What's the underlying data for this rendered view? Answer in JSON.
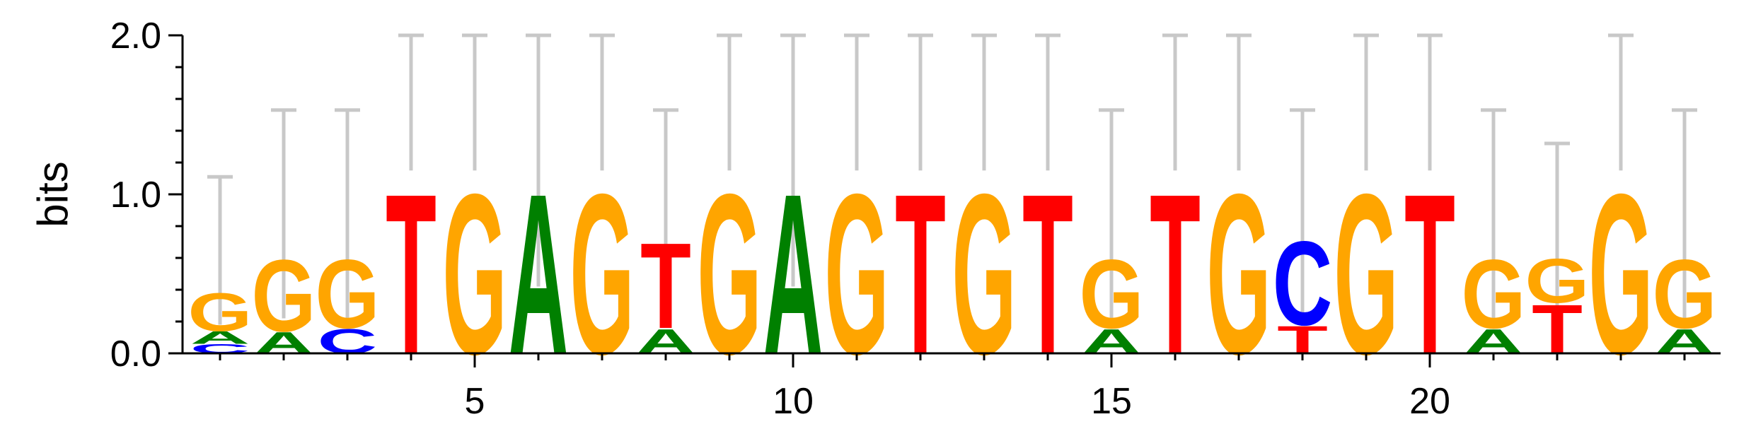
{
  "chart_data": {
    "type": "sequence-logo",
    "title": "",
    "xlabel": "",
    "ylabel": "bits",
    "ylim": [
      0,
      2
    ],
    "yticks": [
      "0.0",
      "1.0",
      "2.0"
    ],
    "xticks": [
      5,
      10,
      15,
      20
    ],
    "colors": {
      "A": "#008000",
      "C": "#0000ff",
      "G": "#ffa500",
      "T": "#ff0000",
      "errorbar": "#c8c8c8"
    },
    "positions": [
      {
        "pos": 1,
        "letters": [
          [
            "C",
            0.06
          ],
          [
            "A",
            0.08
          ],
          [
            "G",
            0.25
          ]
        ],
        "err": [
          0.18,
          1.11
        ]
      },
      {
        "pos": 2,
        "letters": [
          [
            "A",
            0.14
          ],
          [
            "G",
            0.47
          ]
        ],
        "err": [
          0.22,
          1.53
        ]
      },
      {
        "pos": 3,
        "letters": [
          [
            "C",
            0.16
          ],
          [
            "G",
            0.45
          ]
        ],
        "err": [
          0.22,
          1.53
        ]
      },
      {
        "pos": 4,
        "letters": [
          [
            "T",
            1.05
          ]
        ],
        "err": [
          1.15,
          2.0
        ]
      },
      {
        "pos": 5,
        "letters": [
          [
            "G",
            1.05
          ]
        ],
        "err": [
          1.15,
          2.0
        ]
      },
      {
        "pos": 6,
        "letters": [
          [
            "A",
            1.05
          ]
        ],
        "err": [
          0.42,
          2.0
        ]
      },
      {
        "pos": 7,
        "letters": [
          [
            "G",
            1.05
          ]
        ],
        "err": [
          1.15,
          2.0
        ]
      },
      {
        "pos": 8,
        "letters": [
          [
            "A",
            0.16
          ],
          [
            "T",
            0.56
          ]
        ],
        "err": [
          0.22,
          1.53
        ]
      },
      {
        "pos": 9,
        "letters": [
          [
            "G",
            1.05
          ]
        ],
        "err": [
          1.15,
          2.0
        ]
      },
      {
        "pos": 10,
        "letters": [
          [
            "A",
            1.05
          ]
        ],
        "err": [
          0.42,
          2.0
        ]
      },
      {
        "pos": 11,
        "letters": [
          [
            "G",
            1.05
          ]
        ],
        "err": [
          1.15,
          2.0
        ]
      },
      {
        "pos": 12,
        "letters": [
          [
            "T",
            1.05
          ]
        ],
        "err": [
          1.15,
          2.0
        ]
      },
      {
        "pos": 13,
        "letters": [
          [
            "G",
            1.05
          ]
        ],
        "err": [
          1.15,
          2.0
        ]
      },
      {
        "pos": 14,
        "letters": [
          [
            "T",
            1.05
          ]
        ],
        "err": [
          1.15,
          2.0
        ]
      },
      {
        "pos": 15,
        "letters": [
          [
            "A",
            0.16
          ],
          [
            "G",
            0.45
          ]
        ],
        "err": [
          0.22,
          1.53
        ]
      },
      {
        "pos": 16,
        "letters": [
          [
            "T",
            1.05
          ]
        ],
        "err": [
          1.15,
          2.0
        ]
      },
      {
        "pos": 17,
        "letters": [
          [
            "G",
            1.05
          ]
        ],
        "err": [
          1.15,
          2.0
        ]
      },
      {
        "pos": 18,
        "letters": [
          [
            "T",
            0.18
          ],
          [
            "C",
            0.55
          ]
        ],
        "err": [
          0.22,
          1.53
        ]
      },
      {
        "pos": 19,
        "letters": [
          [
            "G",
            1.05
          ]
        ],
        "err": [
          1.15,
          2.0
        ]
      },
      {
        "pos": 20,
        "letters": [
          [
            "T",
            1.05
          ]
        ],
        "err": [
          1.15,
          2.0
        ]
      },
      {
        "pos": 21,
        "letters": [
          [
            "A",
            0.16
          ],
          [
            "G",
            0.45
          ]
        ],
        "err": [
          0.22,
          1.53
        ]
      },
      {
        "pos": 22,
        "letters": [
          [
            "T",
            0.32
          ],
          [
            "G",
            0.29
          ]
        ],
        "err": [
          0.28,
          1.32
        ]
      },
      {
        "pos": 23,
        "letters": [
          [
            "G",
            1.05
          ]
        ],
        "err": [
          1.15,
          2.0
        ]
      },
      {
        "pos": 24,
        "letters": [
          [
            "A",
            0.16
          ],
          [
            "G",
            0.45
          ]
        ],
        "err": [
          0.22,
          1.53
        ]
      }
    ]
  }
}
